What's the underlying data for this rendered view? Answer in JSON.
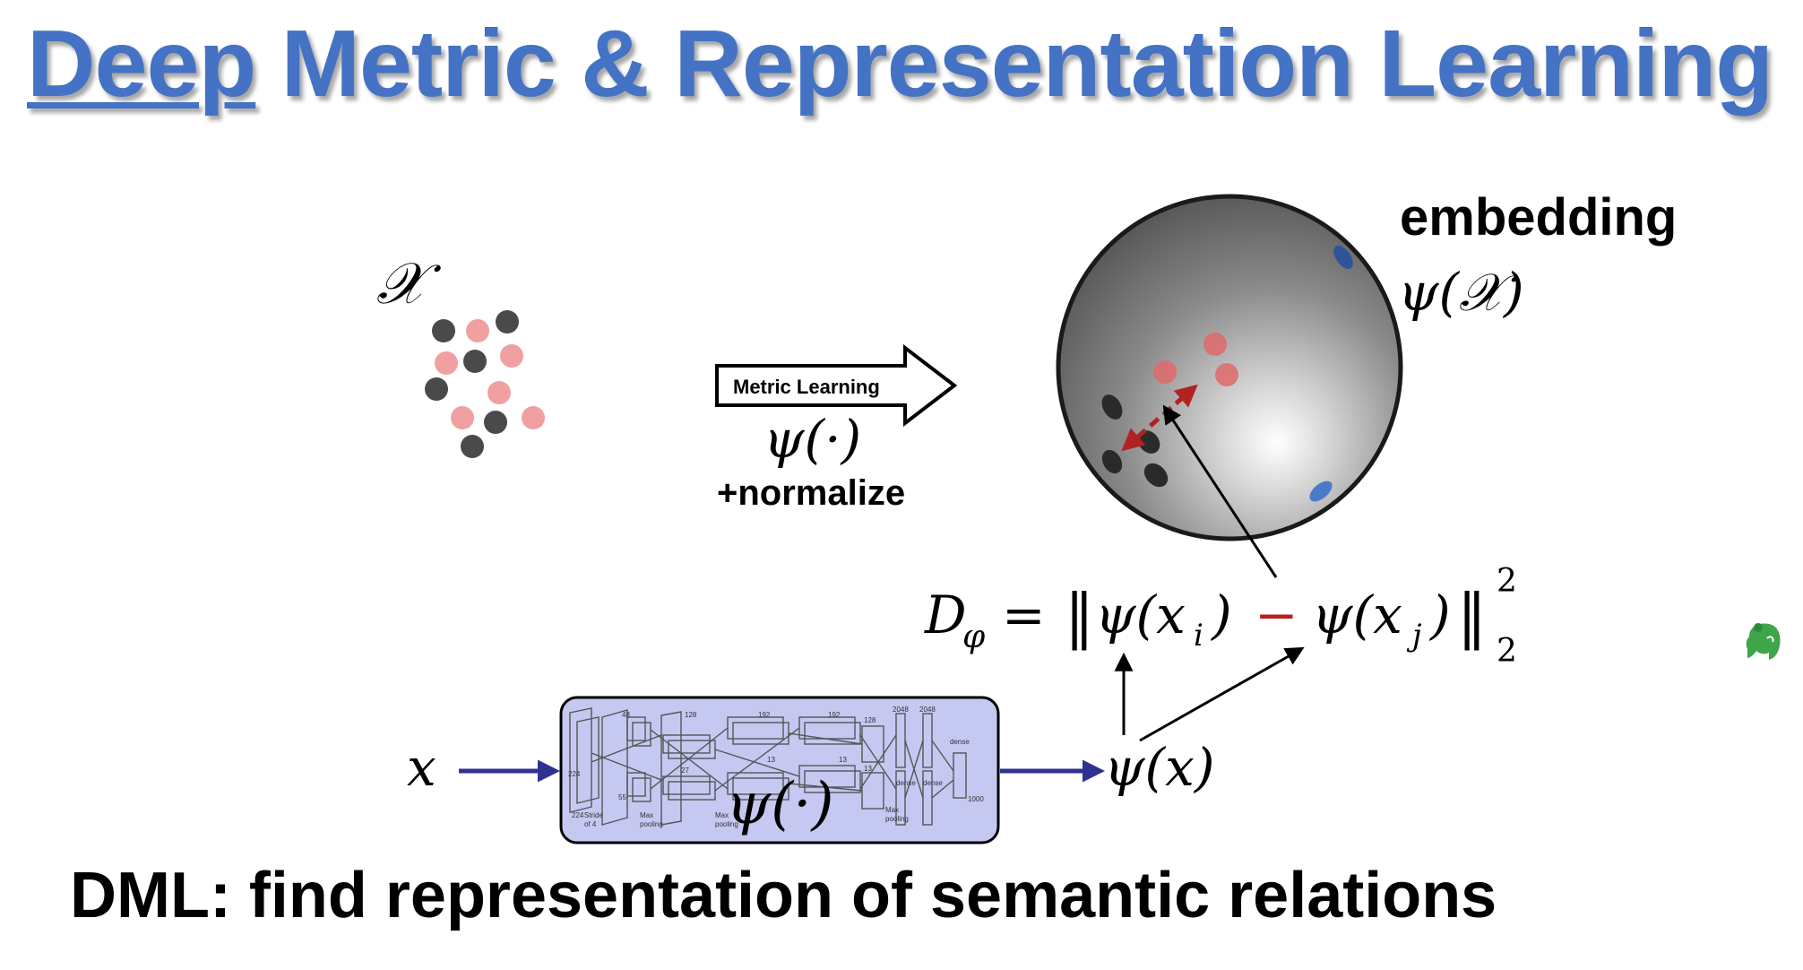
{
  "title": {
    "emphasis": "Deep",
    "rest": " Metric & Representation Learning"
  },
  "input_set_label": "𝒳",
  "arrow": {
    "label": "Metric Learning",
    "function": "ψ(·)",
    "normalize": "+normalize"
  },
  "embedding": {
    "label": "embedding",
    "set_label": "ψ(𝒳)"
  },
  "distance": {
    "lhs": "D",
    "lhs_sub": "φ",
    "eq": "=",
    "norm_open": "‖",
    "term1": "ψ(x",
    "term1_sub": "i",
    "term_close": ")",
    "minus": "−",
    "term2": "ψ(x",
    "term2_sub": "j",
    "norm_close": "‖",
    "power": "2",
    "subscript": "2"
  },
  "pipeline": {
    "input": "x",
    "network": "ψ(·)",
    "output": "ψ(x)"
  },
  "network_labels": [
    "Max",
    "pooling",
    "Max",
    "pooling",
    "Max",
    "pooling",
    "dense",
    "dense",
    "dense",
    "Stride",
    "of 4",
    "224",
    "224",
    "48",
    "128",
    "192",
    "192",
    "128",
    "2048",
    "2048",
    "1000",
    "55",
    "27",
    "13",
    "13",
    "13"
  ],
  "tagline": "DML: find representation of semantic relations",
  "colors": {
    "title": "#4472c4",
    "pink": "#f0a0a0",
    "dark": "#4a4a4a",
    "red": "#b22222",
    "navy": "#2e3192",
    "network_bg": "#c5c8f0",
    "evernote": "#3ea54a"
  }
}
